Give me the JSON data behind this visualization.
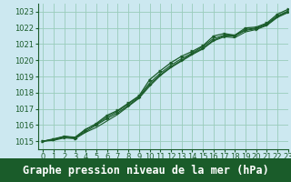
{
  "title": "Graphe pression niveau de la mer (hPa)",
  "bg_color": "#cce8f0",
  "grid_color": "#99ccbb",
  "line_color": "#1a5c2a",
  "marker_color": "#1a5c2a",
  "xlim": [
    -0.5,
    23
  ],
  "ylim": [
    1014.5,
    1023.5
  ],
  "yticks": [
    1015,
    1016,
    1017,
    1018,
    1019,
    1020,
    1021,
    1022,
    1023
  ],
  "xticks": [
    0,
    1,
    2,
    3,
    4,
    5,
    6,
    7,
    8,
    9,
    10,
    11,
    12,
    13,
    14,
    15,
    16,
    17,
    18,
    19,
    20,
    21,
    22,
    23
  ],
  "series": [
    [
      1015.0,
      1015.1,
      1015.3,
      1015.2,
      1015.7,
      1016.1,
      1016.6,
      1016.9,
      1017.35,
      1017.8,
      1018.8,
      1019.35,
      1019.85,
      1020.25,
      1020.55,
      1020.9,
      1021.5,
      1021.65,
      1021.55,
      1022.0,
      1022.05,
      1022.3,
      1022.85,
      1023.15
    ],
    [
      1015.0,
      1015.15,
      1015.3,
      1015.25,
      1015.75,
      1016.05,
      1016.5,
      1016.85,
      1017.3,
      1017.75,
      1018.6,
      1019.2,
      1019.7,
      1020.1,
      1020.45,
      1020.85,
      1021.35,
      1021.55,
      1021.55,
      1021.9,
      1022.0,
      1022.25,
      1022.75,
      1023.05
    ],
    [
      1015.0,
      1015.05,
      1015.2,
      1015.15,
      1015.55,
      1015.85,
      1016.25,
      1016.65,
      1017.15,
      1017.65,
      1018.4,
      1019.05,
      1019.55,
      1019.95,
      1020.35,
      1020.7,
      1021.2,
      1021.45,
      1021.4,
      1021.75,
      1021.9,
      1022.15,
      1022.65,
      1022.95
    ],
    [
      1015.0,
      1015.1,
      1015.25,
      1015.2,
      1015.6,
      1016.0,
      1016.4,
      1016.75,
      1017.2,
      1017.7,
      1018.5,
      1019.1,
      1019.6,
      1020.0,
      1020.4,
      1020.75,
      1021.25,
      1021.5,
      1021.5,
      1021.85,
      1021.95,
      1022.2,
      1022.7,
      1023.0
    ]
  ],
  "title_fontsize": 8.5,
  "tick_fontsize": 6.0,
  "title_bg": "#1a5c2a",
  "title_fg": "#ffffff",
  "bottom_bar_height": 0.13
}
